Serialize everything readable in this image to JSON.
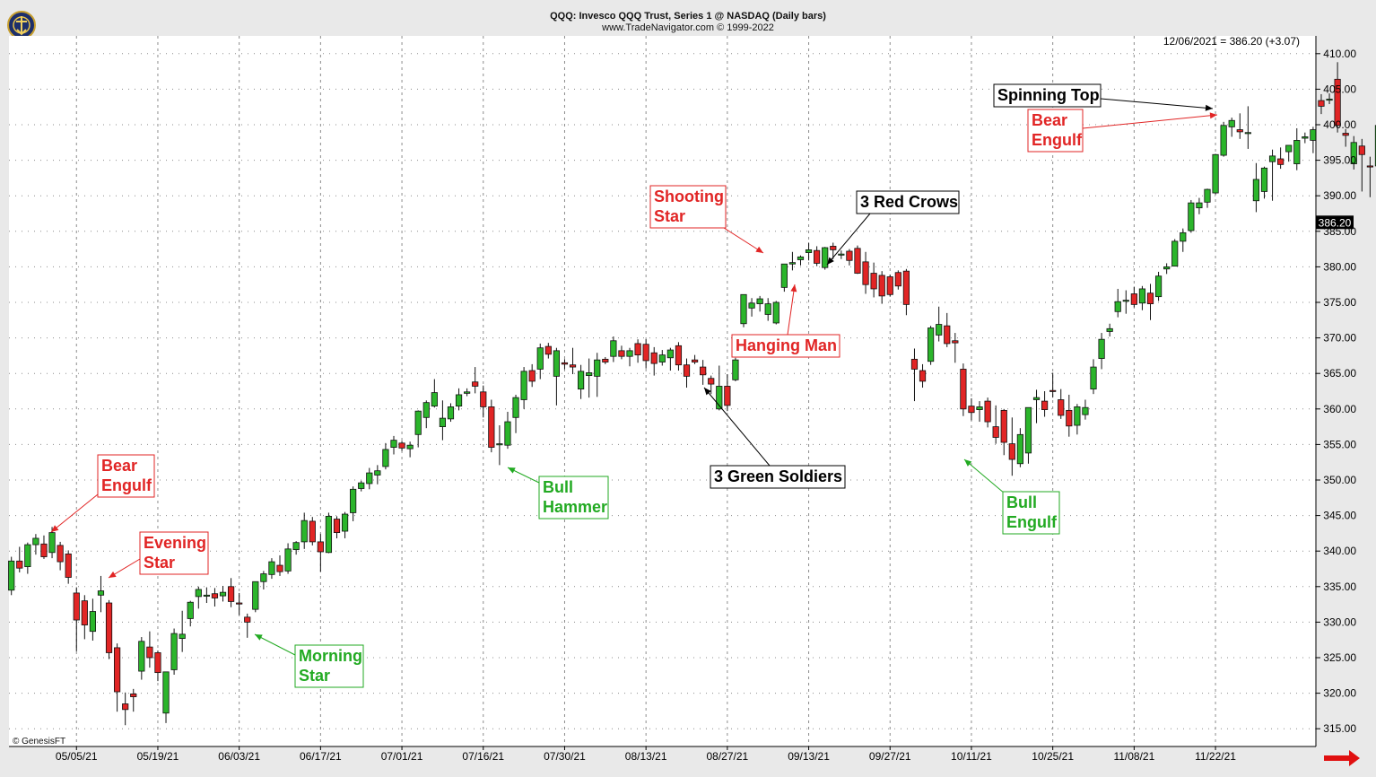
{
  "header": {
    "title": "QQQ:  Invesco QQQ Trust, Series 1 @ NASDAQ  (Daily bars)",
    "subtitle": "www.TradeNavigator.com © 1999-2022",
    "last_value_readout": "12/06/2021 = 386.20 (+3.07)",
    "copyright": "© GenesisFT"
  },
  "colors": {
    "up_candle": "#2bb52b",
    "down_candle": "#e12525",
    "annotation_red": "#e12525",
    "annotation_green": "#22aa22",
    "annotation_black": "#000000",
    "grid": "#8c8c8c",
    "price_tag_bg": "#000000",
    "nav_arrow": "#e01010"
  },
  "icons": {
    "logo": "trade-navigator-logo-icon",
    "next_page": "red-right-arrow-icon"
  },
  "chart_data": {
    "type": "candlestick",
    "title": "QQQ:  Invesco QQQ Trust, Series 1 @ NASDAQ  (Daily bars)",
    "ylim": [
      312.5,
      412.5
    ],
    "y_ticks": [
      315,
      320,
      325,
      330,
      335,
      340,
      345,
      350,
      355,
      360,
      365,
      370,
      375,
      380,
      385,
      390,
      395,
      400,
      405,
      410
    ],
    "y_tick_labels": [
      "315.00",
      "320.00",
      "325.00",
      "330.00",
      "335.00",
      "340.00",
      "345.00",
      "350.00",
      "355.00",
      "360.00",
      "365.00",
      "370.00",
      "375.00",
      "380.00",
      "385.00",
      "390.00",
      "395.00",
      "400.00",
      "405.00",
      "410.00"
    ],
    "x_tick_labels": [
      "05/05/21",
      "05/19/21",
      "06/03/21",
      "06/17/21",
      "07/01/21",
      "07/16/21",
      "07/30/21",
      "08/13/21",
      "08/27/21",
      "09/13/21",
      "09/27/21",
      "10/11/21",
      "10/25/21",
      "11/08/21",
      "11/22/21"
    ],
    "x_tick_bar_index": [
      8,
      18,
      28,
      38,
      48,
      58,
      68,
      78,
      88,
      98,
      108,
      118,
      128,
      138,
      148
    ],
    "last_price_label": "386.20",
    "last_price": 386.2,
    "grid": true,
    "candles": [
      [
        334.5,
        339.2,
        333.8,
        338.6
      ],
      [
        338.6,
        340.6,
        337.0,
        337.6
      ],
      [
        337.8,
        341.2,
        336.8,
        340.9
      ],
      [
        340.9,
        342.4,
        339.5,
        341.8
      ],
      [
        341.0,
        342.2,
        338.9,
        339.2
      ],
      [
        339.8,
        343.4,
        339.0,
        342.6
      ],
      [
        340.8,
        341.3,
        337.3,
        338.5
      ],
      [
        339.6,
        340.1,
        335.4,
        336.3
      ],
      [
        334.1,
        334.9,
        325.9,
        330.3
      ],
      [
        333.0,
        333.8,
        327.6,
        329.6
      ],
      [
        328.7,
        333.3,
        327.4,
        331.5
      ],
      [
        333.8,
        336.5,
        331.4,
        334.4
      ],
      [
        332.7,
        333.1,
        324.8,
        325.7
      ],
      [
        326.4,
        327.0,
        317.4,
        320.2
      ],
      [
        318.5,
        320.1,
        315.5,
        317.7
      ],
      [
        319.9,
        320.6,
        317.4,
        319.5
      ],
      [
        323.1,
        327.9,
        321.9,
        327.3
      ],
      [
        326.5,
        328.7,
        323.6,
        325.0
      ],
      [
        325.7,
        326.0,
        321.7,
        322.9
      ],
      [
        317.2,
        323.0,
        315.8,
        323.0
      ],
      [
        323.3,
        329.1,
        322.6,
        328.4
      ],
      [
        327.7,
        331.6,
        325.8,
        328.3
      ],
      [
        330.5,
        333.0,
        329.4,
        332.8
      ],
      [
        333.6,
        335.0,
        331.9,
        334.6
      ],
      [
        333.7,
        334.9,
        332.7,
        333.8
      ],
      [
        334.0,
        334.8,
        332.2,
        333.4
      ],
      [
        333.7,
        335.1,
        332.9,
        334.2
      ],
      [
        335.0,
        336.2,
        332.1,
        332.9
      ],
      [
        332.7,
        334.1,
        331.0,
        332.6
      ],
      [
        330.7,
        331.2,
        327.8,
        330.0
      ],
      [
        331.8,
        335.7,
        331.4,
        335.7
      ],
      [
        335.7,
        337.2,
        334.6,
        336.8
      ],
      [
        336.7,
        339.0,
        336.1,
        338.5
      ],
      [
        338.0,
        339.4,
        336.5,
        337.1
      ],
      [
        337.2,
        341.1,
        336.8,
        340.3
      ],
      [
        340.2,
        341.4,
        339.5,
        341.2
      ],
      [
        341.3,
        345.4,
        340.3,
        344.3
      ],
      [
        344.2,
        344.8,
        340.8,
        341.3
      ],
      [
        341.3,
        342.4,
        337.1,
        339.9
      ],
      [
        339.8,
        345.4,
        339.7,
        344.9
      ],
      [
        344.5,
        344.9,
        341.8,
        342.6
      ],
      [
        342.8,
        345.5,
        341.8,
        345.2
      ],
      [
        345.4,
        349.1,
        344.2,
        348.7
      ],
      [
        348.8,
        349.9,
        348.4,
        349.6
      ],
      [
        349.5,
        351.7,
        348.7,
        351.0
      ],
      [
        350.7,
        352.1,
        349.4,
        351.3
      ],
      [
        351.9,
        355.2,
        351.5,
        354.3
      ],
      [
        354.6,
        356.2,
        353.6,
        355.6
      ],
      [
        355.2,
        355.5,
        354.1,
        354.5
      ],
      [
        354.4,
        355.4,
        353.2,
        354.9
      ],
      [
        356.4,
        359.8,
        354.6,
        359.7
      ],
      [
        358.8,
        361.2,
        357.3,
        360.9
      ],
      [
        360.4,
        364.2,
        360.2,
        362.3
      ],
      [
        357.5,
        361.2,
        355.6,
        358.7
      ],
      [
        358.6,
        360.8,
        358.2,
        360.3
      ],
      [
        360.4,
        362.9,
        359.8,
        362.0
      ],
      [
        362.2,
        362.9,
        361.8,
        362.4
      ],
      [
        363.8,
        365.9,
        362.2,
        363.2
      ],
      [
        362.4,
        363.3,
        358.8,
        360.3
      ],
      [
        360.3,
        361.3,
        353.9,
        354.6
      ],
      [
        355.1,
        357.7,
        352.1,
        355.1
      ],
      [
        354.9,
        359.6,
        354.4,
        358.2
      ],
      [
        358.8,
        362.0,
        356.6,
        361.6
      ],
      [
        361.3,
        365.9,
        360.0,
        365.3
      ],
      [
        365.4,
        366.3,
        363.1,
        363.9
      ],
      [
        365.6,
        369.2,
        364.2,
        368.6
      ],
      [
        368.8,
        369.3,
        367.1,
        367.7
      ],
      [
        364.6,
        368.6,
        360.5,
        368.2
      ],
      [
        366.5,
        367.0,
        365.6,
        366.3
      ],
      [
        366.2,
        368.6,
        364.9,
        365.9
      ],
      [
        362.8,
        366.2,
        361.4,
        365.3
      ],
      [
        364.7,
        367.1,
        361.6,
        365.1
      ],
      [
        364.6,
        367.9,
        361.7,
        366.9
      ],
      [
        367.0,
        367.3,
        366.3,
        366.6
      ],
      [
        367.4,
        370.2,
        366.6,
        369.6
      ],
      [
        368.2,
        368.9,
        367.0,
        367.4
      ],
      [
        367.4,
        368.6,
        366.0,
        368.2
      ],
      [
        369.2,
        369.8,
        366.5,
        367.6
      ],
      [
        369.1,
        369.8,
        365.7,
        366.8
      ],
      [
        367.9,
        368.7,
        364.7,
        366.4
      ],
      [
        366.6,
        368.3,
        366.1,
        367.6
      ],
      [
        367.2,
        368.6,
        365.4,
        368.3
      ],
      [
        368.9,
        369.4,
        365.4,
        366.2
      ],
      [
        366.2,
        367.1,
        363.0,
        364.6
      ],
      [
        366.9,
        367.6,
        366.3,
        366.6
      ],
      [
        365.9,
        366.9,
        363.4,
        364.8
      ],
      [
        364.3,
        364.7,
        362.1,
        363.5
      ],
      [
        360.0,
        366.1,
        359.8,
        363.2
      ],
      [
        363.2,
        364.9,
        359.7,
        360.5
      ],
      [
        364.1,
        367.2,
        363.9,
        366.9
      ],
      [
        372.0,
        376.1,
        371.5,
        376.1
      ],
      [
        374.2,
        375.6,
        373.0,
        374.9
      ],
      [
        374.8,
        375.9,
        373.7,
        375.5
      ],
      [
        373.3,
        375.6,
        372.4,
        374.8
      ],
      [
        372.1,
        375.2,
        371.9,
        375.0
      ],
      [
        377.1,
        380.4,
        376.5,
        380.4
      ],
      [
        380.4,
        382.1,
        379.5,
        380.6
      ],
      [
        381.0,
        381.6,
        380.2,
        381.4
      ],
      [
        382.0,
        383.4,
        380.9,
        382.4
      ],
      [
        382.3,
        382.9,
        380.1,
        380.5
      ],
      [
        379.9,
        382.8,
        379.6,
        382.7
      ],
      [
        382.9,
        383.4,
        381.1,
        382.4
      ],
      [
        381.8,
        382.3,
        381.1,
        381.8
      ],
      [
        382.2,
        382.5,
        380.2,
        380.9
      ],
      [
        382.6,
        383.0,
        379.0,
        379.1
      ],
      [
        380.7,
        382.1,
        376.2,
        377.5
      ],
      [
        379.1,
        380.6,
        375.7,
        376.9
      ],
      [
        378.8,
        379.4,
        374.8,
        375.9
      ],
      [
        378.6,
        378.9,
        375.8,
        376.1
      ],
      [
        379.2,
        379.5,
        376.8,
        377.3
      ],
      [
        379.4,
        379.7,
        373.2,
        374.7
      ],
      [
        367.0,
        368.5,
        361.1,
        365.6
      ],
      [
        365.4,
        366.3,
        363.0,
        363.9
      ],
      [
        366.7,
        371.7,
        366.2,
        371.4
      ],
      [
        370.4,
        374.4,
        369.5,
        371.9
      ],
      [
        371.7,
        373.5,
        368.7,
        369.2
      ],
      [
        369.6,
        370.7,
        366.5,
        369.3
      ],
      [
        365.6,
        366.4,
        359.0,
        360.0
      ],
      [
        360.4,
        361.5,
        358.4,
        359.5
      ],
      [
        359.9,
        361.1,
        358.2,
        360.3
      ],
      [
        361.1,
        361.6,
        357.4,
        358.2
      ],
      [
        357.5,
        360.5,
        355.1,
        356.0
      ],
      [
        359.8,
        360.0,
        353.5,
        355.3
      ],
      [
        355.1,
        358.8,
        350.6,
        352.9
      ],
      [
        352.3,
        357.3,
        351.8,
        356.4
      ],
      [
        353.8,
        360.2,
        352.3,
        360.2
      ],
      [
        361.3,
        362.7,
        358.0,
        361.6
      ],
      [
        361.1,
        362.5,
        358.9,
        359.9
      ],
      [
        362.6,
        365.1,
        361.6,
        362.5
      ],
      [
        361.3,
        362.8,
        358.6,
        359.1
      ],
      [
        359.8,
        362.0,
        356.1,
        357.6
      ],
      [
        357.7,
        360.7,
        356.4,
        360.3
      ],
      [
        359.2,
        361.3,
        358.5,
        360.2
      ],
      [
        362.8,
        367.0,
        362.1,
        365.9
      ],
      [
        367.1,
        370.7,
        365.6,
        369.8
      ],
      [
        370.9,
        372.0,
        370.2,
        371.3
      ],
      [
        373.7,
        376.9,
        372.9,
        375.1
      ],
      [
        375.3,
        376.7,
        373.4,
        375.3
      ],
      [
        376.2,
        377.2,
        374.3,
        374.7
      ],
      [
        374.9,
        377.3,
        373.9,
        376.9
      ],
      [
        376.3,
        377.6,
        372.5,
        374.8
      ],
      [
        375.8,
        379.3,
        375.2,
        378.7
      ],
      [
        379.7,
        380.5,
        379.0,
        380.0
      ],
      [
        380.1,
        383.9,
        380.1,
        383.6
      ],
      [
        383.6,
        385.4,
        382.1,
        384.8
      ],
      [
        385.1,
        389.4,
        384.8,
        389.0
      ],
      [
        388.3,
        389.7,
        387.4,
        389.0
      ],
      [
        389.1,
        391.0,
        388.3,
        390.9
      ],
      [
        390.4,
        395.9,
        390.2,
        395.8
      ],
      [
        395.7,
        400.4,
        395.5,
        399.9
      ],
      [
        399.7,
        401.0,
        398.3,
        400.6
      ],
      [
        399.3,
        401.6,
        398.0,
        399.0
      ],
      [
        398.8,
        402.6,
        396.6,
        398.9
      ],
      [
        389.3,
        394.6,
        387.7,
        392.3
      ],
      [
        390.6,
        394.1,
        389.6,
        393.9
      ],
      [
        394.8,
        396.5,
        389.3,
        395.6
      ],
      [
        395.2,
        396.8,
        393.8,
        394.4
      ],
      [
        396.2,
        397.1,
        394.8,
        397.1
      ],
      [
        394.5,
        399.5,
        393.6,
        397.8
      ],
      [
        398.1,
        398.9,
        397.4,
        398.3
      ],
      [
        397.8,
        399.7,
        396.0,
        399.3
      ],
      [
        403.4,
        404.3,
        401.5,
        402.6
      ],
      [
        403.5,
        404.4,
        402.9,
        403.6
      ],
      [
        406.4,
        408.8,
        398.9,
        399.9
      ],
      [
        398.8,
        399.4,
        396.9,
        398.5
      ],
      [
        394.5,
        398.4,
        393.7,
        397.5
      ],
      [
        397.0,
        398.0,
        390.6,
        395.8
      ],
      [
        394.2,
        395.5,
        389.8,
        394.1
      ],
      [
        394.2,
        400.3,
        394.1,
        399.9
      ],
      [
        399.3,
        401.6,
        395.6,
        396.5
      ],
      [
        398.6,
        400.1,
        390.1,
        392.8
      ],
      [
        392.9,
        394.0,
        386.1,
        386.7
      ],
      [
        393.6,
        394.6,
        383.9,
        384.0
      ],
      [
        392.4,
        393.4,
        379.1,
        385.0
      ],
      [
        382.6,
        389.3,
        380.4,
        385.8
      ]
    ],
    "annotations": [
      {
        "lines": [
          "Bear",
          "Engulf"
        ],
        "color": "red"
      },
      {
        "lines": [
          "Evening",
          "Star"
        ],
        "color": "red"
      },
      {
        "lines": [
          "Morning",
          "Star"
        ],
        "color": "green"
      },
      {
        "lines": [
          "Bull",
          "Hammer"
        ],
        "color": "green"
      },
      {
        "lines": [
          "Shooting",
          "Star"
        ],
        "color": "red"
      },
      {
        "lines": [
          "3 Red Crows"
        ],
        "color": "black"
      },
      {
        "lines": [
          "Hanging Man"
        ],
        "color": "red"
      },
      {
        "lines": [
          "3 Green Soldiers"
        ],
        "color": "black"
      },
      {
        "lines": [
          "Bull",
          "Engulf"
        ],
        "color": "green"
      },
      {
        "lines": [
          "Spinning Top"
        ],
        "color": "black"
      },
      {
        "lines": [
          "Bear",
          "Engulf"
        ],
        "color": "red"
      }
    ]
  }
}
